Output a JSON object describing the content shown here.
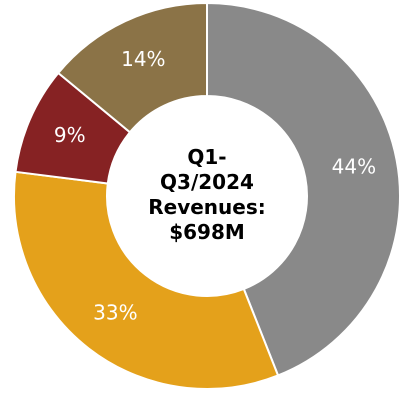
{
  "chart_data": {
    "type": "donut",
    "center_text": [
      "Q1-",
      "Q3/2024",
      "Revenues:",
      "$698M"
    ],
    "values": [
      44,
      33,
      9,
      14
    ],
    "value_labels": [
      "44%",
      "33%",
      "9%",
      "14%"
    ],
    "colors": [
      "#898989",
      "#E4A11B",
      "#862223",
      "#8B7347"
    ]
  }
}
